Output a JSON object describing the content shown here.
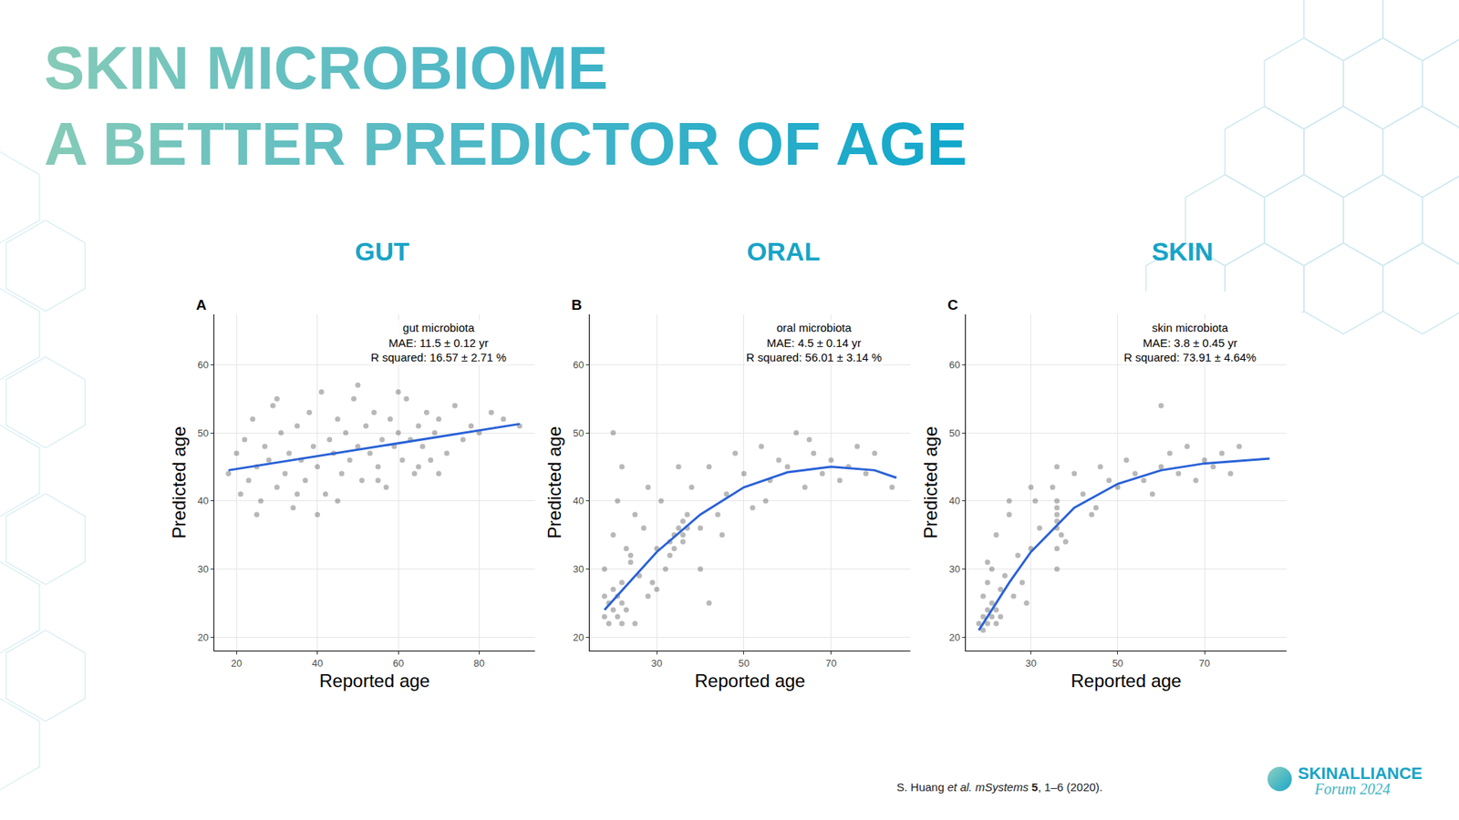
{
  "header": {
    "title_lines": [
      "SKIN MICROBIOME",
      "A BETTER PREDICTOR OF AGE"
    ]
  },
  "chart_data": [
    {
      "type": "scatter",
      "panel": "A",
      "heading": "GUT",
      "annotations": [
        "gut microbiota",
        "MAE: 11.5 ± 0.12 yr",
        "R squared: 16.57 ± 2.71 %"
      ],
      "x_label": "Reported age",
      "y_label": "Predicted age",
      "xlim": [
        14.5,
        93.8
      ],
      "xticks": [
        20,
        40,
        60,
        80
      ],
      "ylim": [
        18,
        67.4
      ],
      "yticks": [
        20,
        30,
        40,
        50,
        60
      ],
      "grid": true,
      "series": [
        {
          "type": "scatter",
          "marker": "circle",
          "color": "#000000",
          "x": [
            18,
            20,
            21,
            22,
            23,
            24,
            25,
            26,
            27,
            28,
            29,
            30,
            31,
            32,
            33,
            34,
            35,
            36,
            37,
            38,
            39,
            40,
            41,
            42,
            43,
            44,
            45,
            46,
            47,
            48,
            49,
            50,
            51,
            52,
            53,
            54,
            55,
            56,
            57,
            58,
            59,
            60,
            61,
            62,
            63,
            64,
            65,
            66,
            67,
            68,
            69,
            70,
            72,
            74,
            76,
            78,
            80,
            83,
            86,
            90,
            25,
            35,
            45,
            55,
            65,
            30,
            50,
            60,
            40,
            70
          ],
          "values": [
            44,
            47,
            41,
            49,
            43,
            52,
            45,
            40,
            48,
            46,
            54,
            42,
            50,
            44,
            47,
            39,
            51,
            46,
            43,
            53,
            48,
            45,
            56,
            41,
            49,
            47,
            52,
            44,
            50,
            46,
            55,
            48,
            43,
            51,
            47,
            53,
            45,
            49,
            42,
            52,
            48,
            50,
            46,
            55,
            49,
            44,
            51,
            48,
            53,
            46,
            50,
            52,
            47,
            54,
            49,
            51,
            50,
            53,
            52,
            51,
            38,
            41,
            40,
            43,
            45,
            55,
            57,
            56,
            38,
            44
          ]
        },
        {
          "type": "line",
          "line_style": "solid",
          "color": "#2a62d6",
          "x": [
            18,
            90
          ],
          "values": [
            44.5,
            51.3
          ]
        }
      ]
    },
    {
      "type": "scatter",
      "panel": "B",
      "heading": "ORAL",
      "annotations": [
        "oral microbiota",
        "MAE: 4.5 ± 0.14 yr",
        "R squared: 56.01 ± 3.14 %"
      ],
      "x_label": "Reported age",
      "y_label": "Predicted age",
      "xlim": [
        14.6,
        88.2
      ],
      "xticks": [
        30,
        50,
        70
      ],
      "ylim": [
        18,
        67.4
      ],
      "yticks": [
        20,
        30,
        40,
        50,
        60
      ],
      "grid": true,
      "series": [
        {
          "type": "scatter",
          "marker": "circle",
          "color": "#000000",
          "x": [
            18,
            19,
            19,
            20,
            20,
            21,
            21,
            22,
            22,
            23,
            18,
            20,
            21,
            22,
            23,
            24,
            25,
            26,
            27,
            28,
            33,
            33,
            34,
            34,
            35,
            36,
            36,
            37,
            37,
            36,
            29,
            30,
            31,
            32,
            38,
            40,
            42,
            44,
            46,
            48,
            50,
            52,
            54,
            56,
            58,
            60,
            62,
            64,
            66,
            68,
            70,
            72,
            74,
            76,
            78,
            80,
            84,
            25,
            28,
            45,
            20,
            24,
            30,
            35,
            40,
            55,
            65,
            18,
            22,
            42
          ],
          "values": [
            23,
            25,
            22,
            27,
            24,
            26,
            23,
            28,
            25,
            24,
            30,
            35,
            40,
            45,
            33,
            31,
            38,
            29,
            36,
            42,
            32,
            34,
            33,
            35,
            36,
            37,
            35,
            38,
            36,
            34,
            28,
            33,
            40,
            30,
            42,
            36,
            45,
            38,
            41,
            47,
            44,
            39,
            48,
            43,
            46,
            45,
            50,
            42,
            47,
            44,
            46,
            43,
            45,
            48,
            44,
            47,
            42,
            22,
            26,
            35,
            50,
            32,
            27,
            45,
            30,
            40,
            49,
            26,
            22,
            25
          ]
        },
        {
          "type": "line",
          "line_style": "solid",
          "color": "#2a62d6",
          "x": [
            18,
            25,
            30,
            40,
            50,
            60,
            70,
            80,
            85
          ],
          "values": [
            24,
            29,
            32.5,
            38,
            42,
            44.2,
            45,
            44.5,
            43.4
          ]
        }
      ]
    },
    {
      "type": "scatter",
      "panel": "C",
      "heading": "SKIN",
      "annotations": [
        "skin microbiota",
        "MAE: 3.8 ± 0.45 yr",
        "R squared: 73.91 ± 4.64%"
      ],
      "x_label": "Reported age",
      "y_label": "Predicted age",
      "xlim": [
        15,
        88.9
      ],
      "xticks": [
        30,
        50,
        70
      ],
      "ylim": [
        18,
        67.4
      ],
      "yticks": [
        20,
        30,
        40,
        50,
        60
      ],
      "grid": true,
      "series": [
        {
          "type": "scatter",
          "marker": "circle",
          "color": "#000000",
          "x": [
            18,
            19,
            19,
            20,
            20,
            21,
            21,
            22,
            22,
            23,
            19,
            20,
            21,
            22,
            23,
            24,
            25,
            26,
            27,
            28,
            36,
            36,
            36,
            36,
            36,
            36,
            35,
            37,
            36,
            36,
            29,
            30,
            31,
            32,
            38,
            40,
            42,
            44,
            46,
            48,
            50,
            52,
            54,
            56,
            58,
            60,
            62,
            64,
            66,
            68,
            70,
            72,
            74,
            76,
            78,
            20,
            25,
            30,
            45,
            60
          ],
          "values": [
            22,
            23,
            21,
            24,
            22,
            25,
            23,
            24,
            22,
            23,
            26,
            28,
            30,
            35,
            27,
            29,
            38,
            26,
            32,
            28,
            30,
            33,
            36,
            37,
            38,
            40,
            42,
            35,
            45,
            39,
            25,
            33,
            40,
            36,
            34,
            44,
            41,
            38,
            45,
            43,
            42,
            46,
            44,
            43,
            41,
            45,
            47,
            44,
            48,
            43,
            46,
            45,
            47,
            44,
            48,
            31,
            40,
            42,
            39,
            54
          ]
        },
        {
          "type": "line",
          "line_style": "solid",
          "color": "#2a62d6",
          "x": [
            18,
            25,
            30,
            40,
            50,
            60,
            70,
            85
          ],
          "values": [
            21,
            28,
            32.5,
            39,
            42.5,
            44.5,
            45.5,
            46.2
          ]
        }
      ]
    }
  ],
  "citation": [
    {
      "text": "S. Huang "
    },
    {
      "text": "et al.",
      "italic": true
    },
    {
      "text": " "
    },
    {
      "text": "mSystems",
      "italic": true
    },
    {
      "text": " "
    },
    {
      "text": "5",
      "bold": true
    },
    {
      "text": ", 1–6 (2020)."
    }
  ],
  "logo": {
    "name": "SKINALLIANCE",
    "subtitle": "Forum 2024"
  }
}
